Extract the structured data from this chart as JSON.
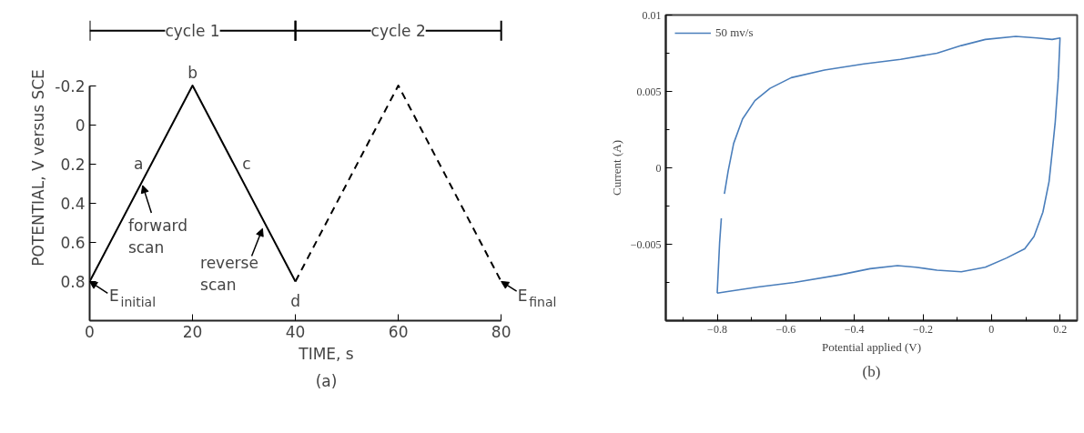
{
  "chart_data": [
    {
      "type": "line",
      "xlabel": "TIME, s",
      "ylabel": "POTENTIAL, V versus SCE",
      "xlim": [
        0,
        80
      ],
      "ylim": [
        1.0,
        -0.2
      ],
      "xticks": [
        0,
        20,
        40,
        60,
        80
      ],
      "yticks": [
        -0.2,
        0,
        0.2,
        0.4,
        0.6,
        0.8
      ],
      "grid": false,
      "legend": false,
      "series": [
        {
          "color": "#000000",
          "line_style": "solid",
          "x": [
            0,
            20,
            40
          ],
          "values": [
            0.8,
            -0.2,
            0.8
          ]
        },
        {
          "color": "#000000",
          "line_style": "dashed",
          "x": [
            40,
            60,
            80
          ],
          "values": [
            0.8,
            -0.2,
            0.8
          ]
        }
      ],
      "annotations": [
        "cycle 1",
        "cycle 2",
        "a",
        "b",
        "c",
        "d",
        {
          "text": "forward\nscan",
          "x": 10.3,
          "y": 0.31
        },
        {
          "text": "reverse\nscan",
          "x": 33.6,
          "y": 0.53
        },
        {
          "text": "E$_{initial}$",
          "x": 0,
          "y": 0.8
        },
        {
          "text": "E$_{final}$",
          "x": 80,
          "y": 0.8
        },
        "(a)"
      ]
    },
    {
      "type": "line",
      "xlabel": "Potential applied (V)",
      "ylabel": "Current (A)",
      "xlim": [
        -0.95,
        0.25
      ],
      "ylim": [
        -0.01,
        0.01
      ],
      "xticks": [
        {
          "value": -0.9,
          "label": null
        },
        {
          "value": -0.8,
          "label": "−0.8"
        },
        {
          "value": -0.7,
          "label": null
        },
        {
          "value": -0.6,
          "label": "−0.6"
        },
        {
          "value": -0.5,
          "label": null
        },
        {
          "value": -0.4,
          "label": "−0.4"
        },
        {
          "value": -0.3,
          "label": null
        },
        {
          "value": -0.2,
          "label": "−0.2"
        },
        {
          "value": -0.1,
          "label": null
        },
        0,
        {
          "value": 0.1,
          "label": null
        },
        0.2
      ],
      "yticks": [
        {
          "value": -0.0075,
          "label": null
        },
        {
          "value": -0.005,
          "label": "−0.005"
        },
        {
          "value": -0.0025,
          "label": null
        },
        0,
        {
          "value": 0.0025,
          "label": null
        },
        0.005,
        {
          "value": 0.0075,
          "label": null
        },
        0.01
      ],
      "grid": false,
      "legend": "top left",
      "series": [
        {
          "name": "50 mv/s",
          "color": "#4a7ebb",
          "x": [
            -0.8,
            -0.793,
            -0.788,
            null,
            -0.779,
            -0.768,
            -0.752,
            -0.726,
            -0.69,
            -0.646,
            -0.584,
            -0.487,
            -0.372,
            -0.265,
            -0.159,
            -0.088,
            -0.018,
            0.071,
            0.133,
            0.177,
            0.2,
            0.195,
            0.186,
            0.177,
            0.168,
            0.15,
            0.124,
            0.097,
            0.044,
            -0.018,
            -0.088,
            -0.159,
            -0.221,
            -0.274,
            -0.354,
            -0.442,
            -0.575,
            -0.681,
            -0.77,
            -0.8
          ],
          "values": [
            -0.0082,
            -0.0049,
            -0.0033,
            null,
            -0.0017,
            -0.0002,
            0.0016,
            0.0032,
            0.0044,
            0.0052,
            0.0059,
            0.0064,
            0.0068,
            0.0071,
            0.0075,
            0.008,
            0.0084,
            0.0086,
            0.0085,
            0.0084,
            0.0085,
            0.0059,
            0.003,
            0.001,
            -0.0009,
            -0.0029,
            -0.0045,
            -0.0053,
            -0.0059,
            -0.0065,
            -0.0068,
            -0.0067,
            -0.0065,
            -0.0064,
            -0.0066,
            -0.007,
            -0.0075,
            -0.0078,
            -0.0081,
            -0.0082
          ]
        }
      ],
      "annotations": [
        "(b)"
      ]
    }
  ]
}
